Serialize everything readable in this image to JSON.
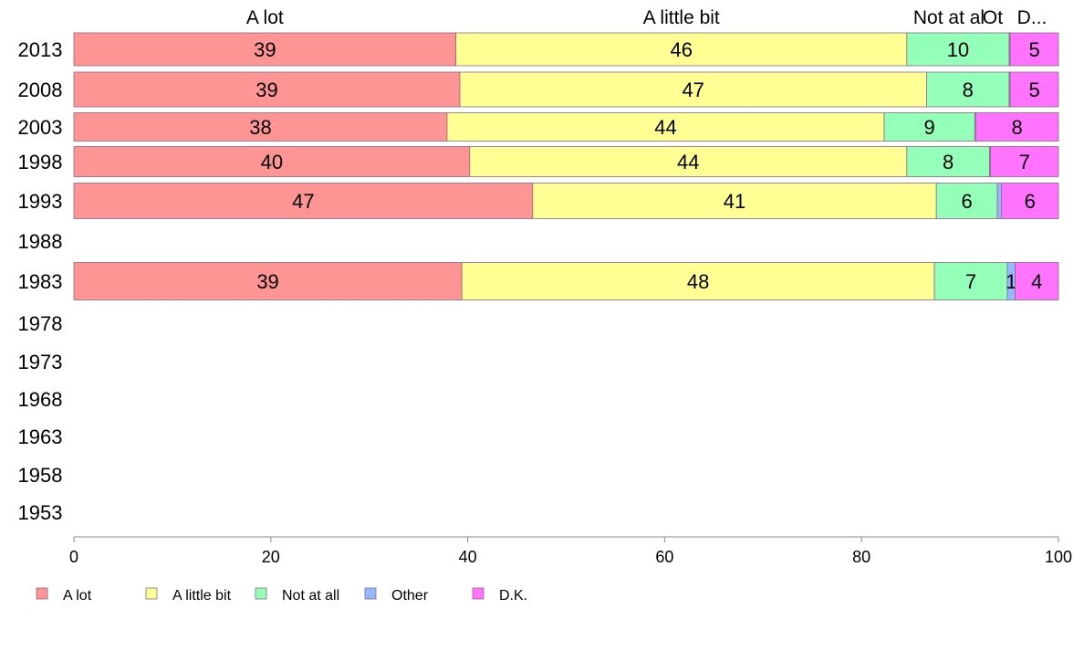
{
  "chart_data": {
    "type": "bar",
    "orientation": "horizontal",
    "stacked": true,
    "xlim": [
      0,
      100
    ],
    "xticks": [
      0,
      20,
      40,
      60,
      80,
      100
    ],
    "categories": [
      "2013",
      "2008",
      "2003",
      "1998",
      "1993",
      "1988",
      "1983",
      "1978",
      "1973",
      "1968",
      "1963",
      "1958",
      "1953"
    ],
    "series": [
      {
        "name": "A lot",
        "color": "#ff9494",
        "values": [
          38.8,
          39.2,
          37.9,
          40.2,
          46.6,
          null,
          39.4,
          null,
          null,
          null,
          null,
          null,
          null
        ]
      },
      {
        "name": "A little bit",
        "color": "#ffff94",
        "values": [
          45.8,
          47.4,
          44.4,
          44.4,
          41.0,
          null,
          48.0,
          null,
          null,
          null,
          null,
          null,
          null
        ]
      },
      {
        "name": "Not at all",
        "color": "#94ffb9",
        "values": [
          10.4,
          8.4,
          9.2,
          8.4,
          6.2,
          null,
          7.4,
          null,
          null,
          null,
          null,
          null,
          null
        ]
      },
      {
        "name": "Other",
        "color": "#94b9ff",
        "values": [
          0.1,
          0.1,
          0.1,
          0.1,
          0.4,
          null,
          0.8,
          null,
          null,
          null,
          null,
          null,
          null
        ]
      },
      {
        "name": "D.K.",
        "color": "#ff73ff",
        "values": [
          4.9,
          4.9,
          8.4,
          6.9,
          5.8,
          null,
          4.4,
          null,
          null,
          null,
          null,
          null,
          null
        ]
      }
    ],
    "data_labels": [
      [
        "39",
        "46",
        "10",
        "",
        "5"
      ],
      [
        "39",
        "47",
        "8",
        "",
        "5"
      ],
      [
        "38",
        "44",
        "9",
        "",
        "8"
      ],
      [
        "40",
        "44",
        "8",
        "",
        "7"
      ],
      [
        "47",
        "41",
        "6",
        "",
        "6"
      ],
      [
        "",
        "",
        "",
        "",
        ""
      ],
      [
        "39",
        "48",
        "7",
        "1",
        "4"
      ],
      [
        "",
        "",
        "",
        "",
        ""
      ],
      [
        "",
        "",
        "",
        "",
        ""
      ],
      [
        "",
        "",
        "",
        "",
        ""
      ],
      [
        "",
        "",
        "",
        "",
        ""
      ],
      [
        "",
        "",
        "",
        "",
        ""
      ],
      [
        "",
        "",
        "",
        "",
        ""
      ]
    ],
    "column_headers": [
      "A lot",
      "A little bit",
      "Not at al",
      "Ot",
      "D..."
    ],
    "legend": {
      "placement": "bottom-left",
      "entries": [
        "A lot",
        "A little bit",
        "Not at all",
        "Other",
        "D.K."
      ]
    },
    "title": "",
    "xlabel": "",
    "ylabel": ""
  }
}
